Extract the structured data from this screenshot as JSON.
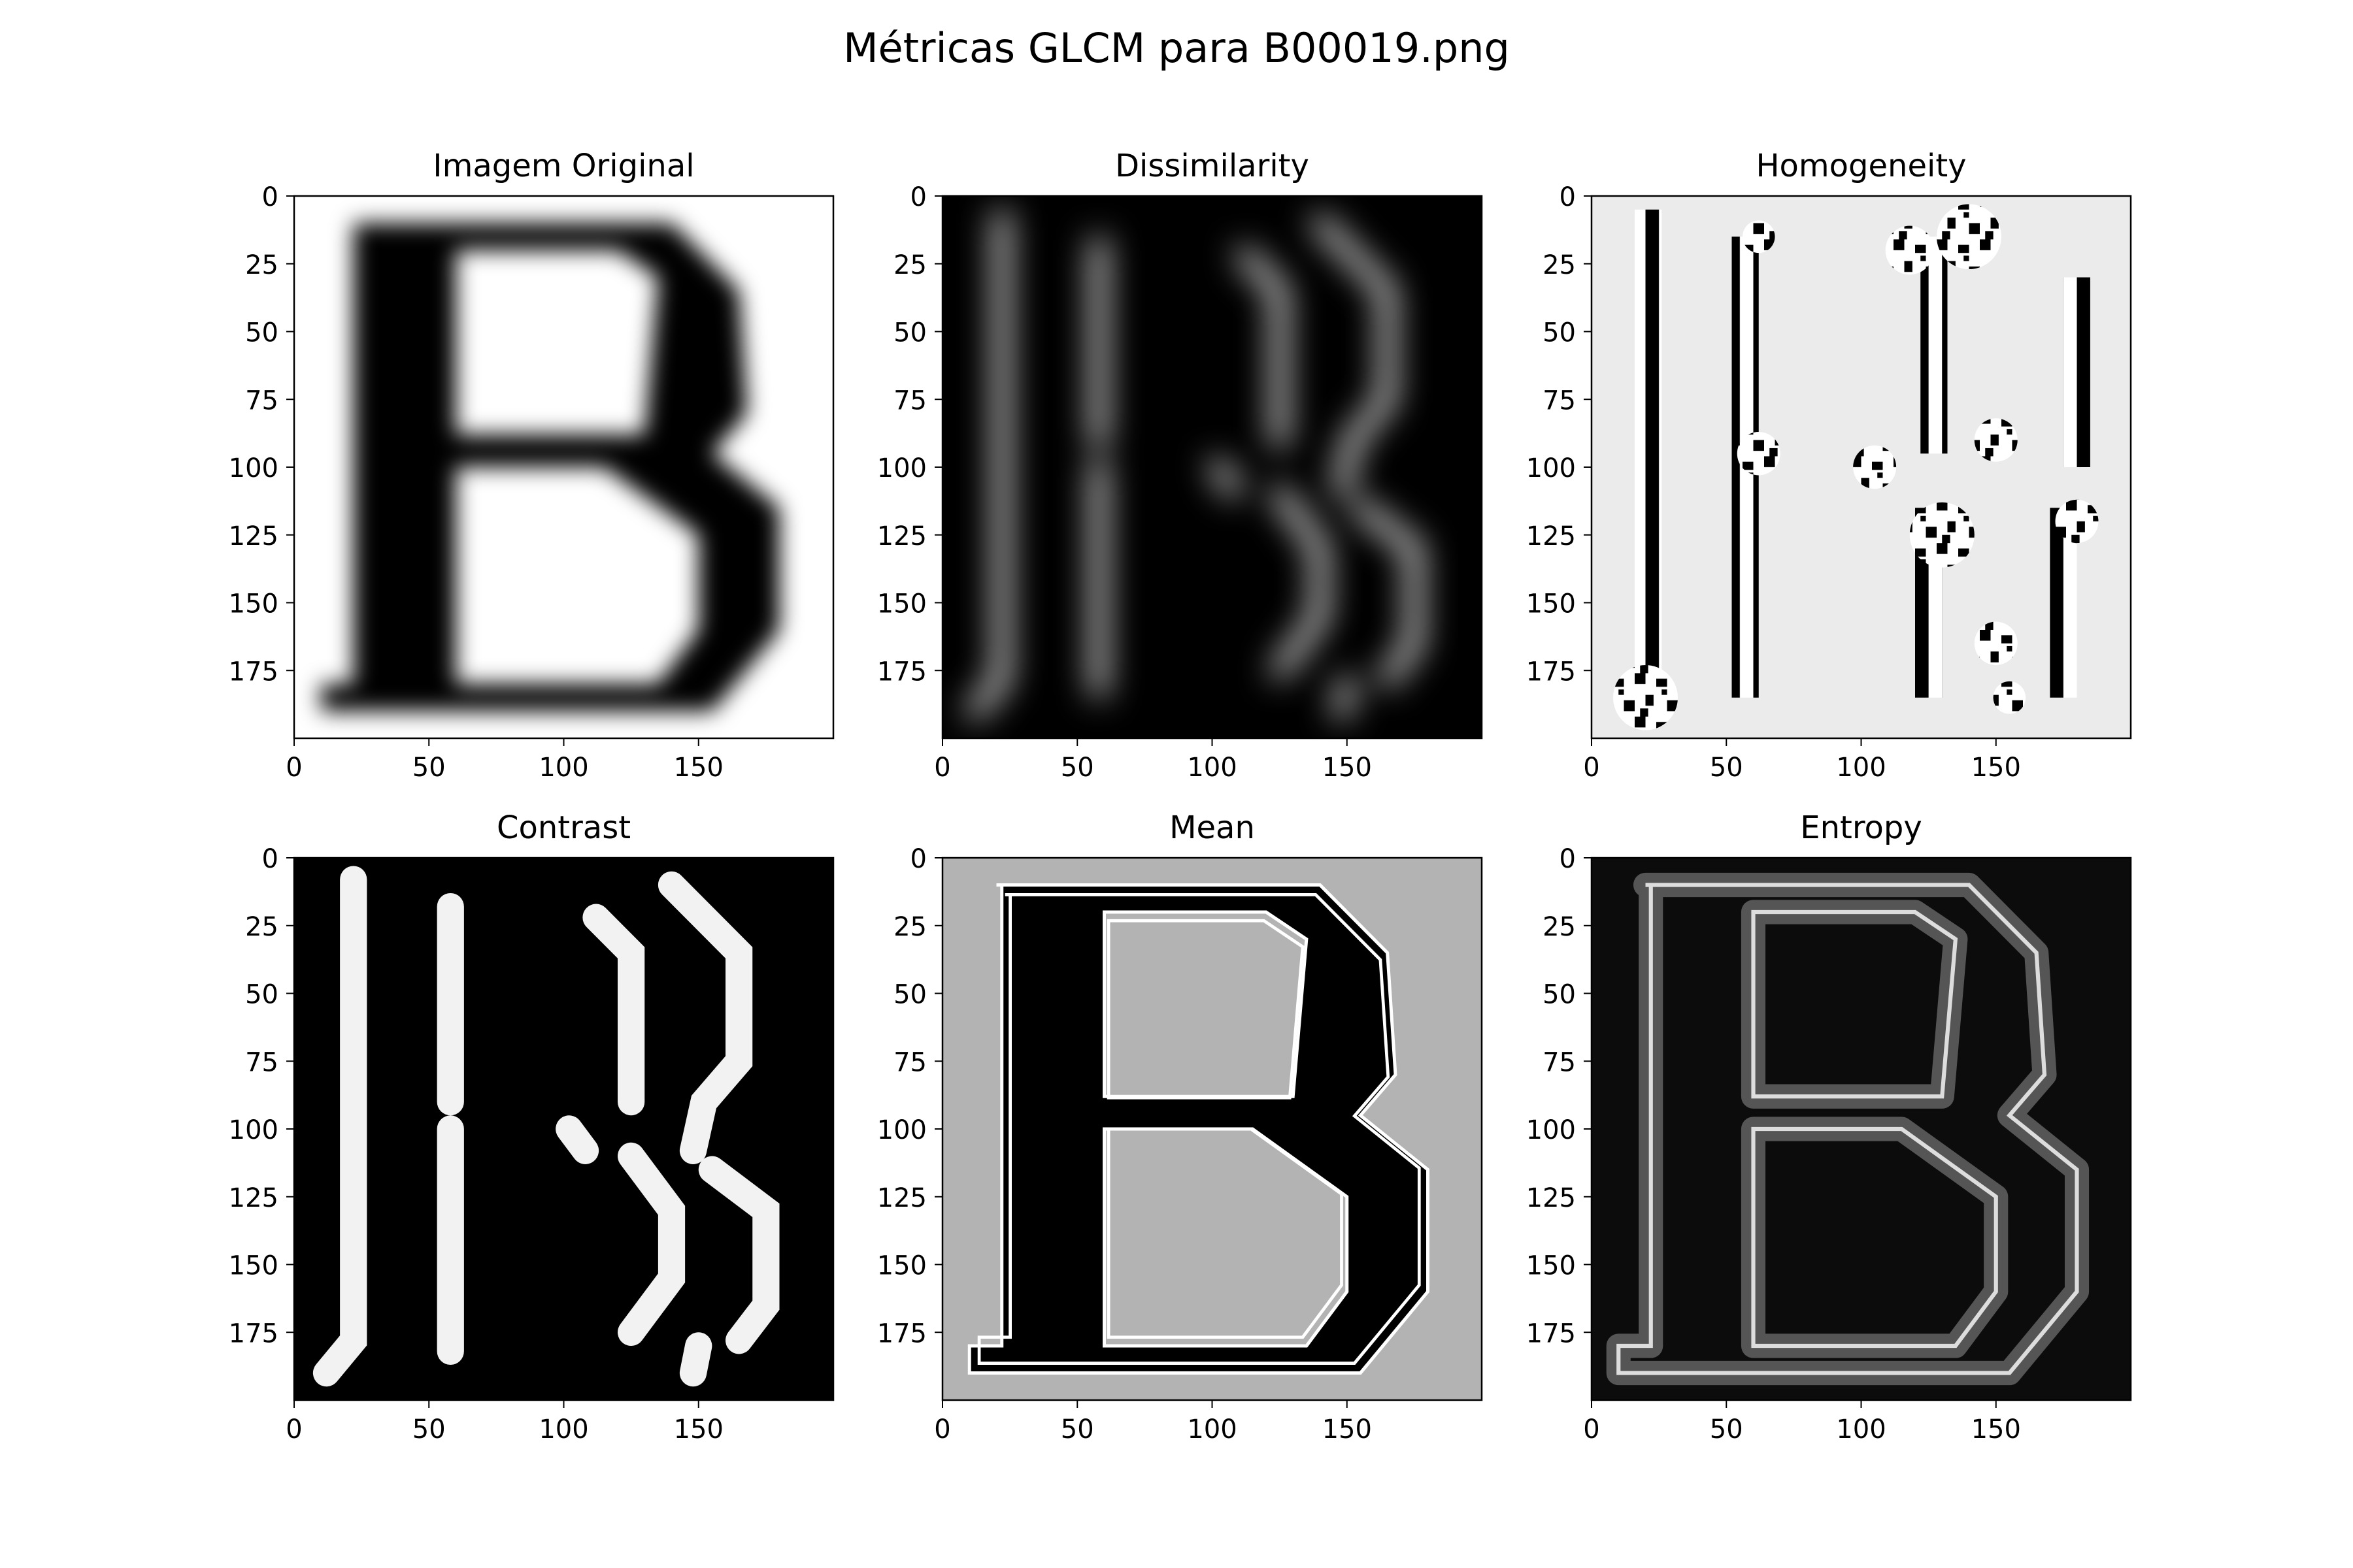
{
  "figure": {
    "title": "Métricas GLCM para B00019.png",
    "tick_values": [
      0,
      25,
      50,
      75,
      100,
      125,
      150,
      175
    ],
    "x_tick_values": [
      0,
      50,
      100,
      150
    ],
    "panels": [
      {
        "key": "original",
        "title": "Imagem Original",
        "background": "#ffffff"
      },
      {
        "key": "dissimilarity",
        "title": "Dissimilarity",
        "background": "#000000"
      },
      {
        "key": "homogeneity",
        "title": "Homogeneity",
        "background": "#ebebeb"
      },
      {
        "key": "contrast",
        "title": "Contrast",
        "background": "#000000"
      },
      {
        "key": "mean",
        "title": "Mean",
        "background": "#b3b3b3"
      },
      {
        "key": "entropy",
        "title": "Entropy",
        "background": "#0c0c0c"
      }
    ],
    "image_extent": [
      0,
      200
    ]
  }
}
